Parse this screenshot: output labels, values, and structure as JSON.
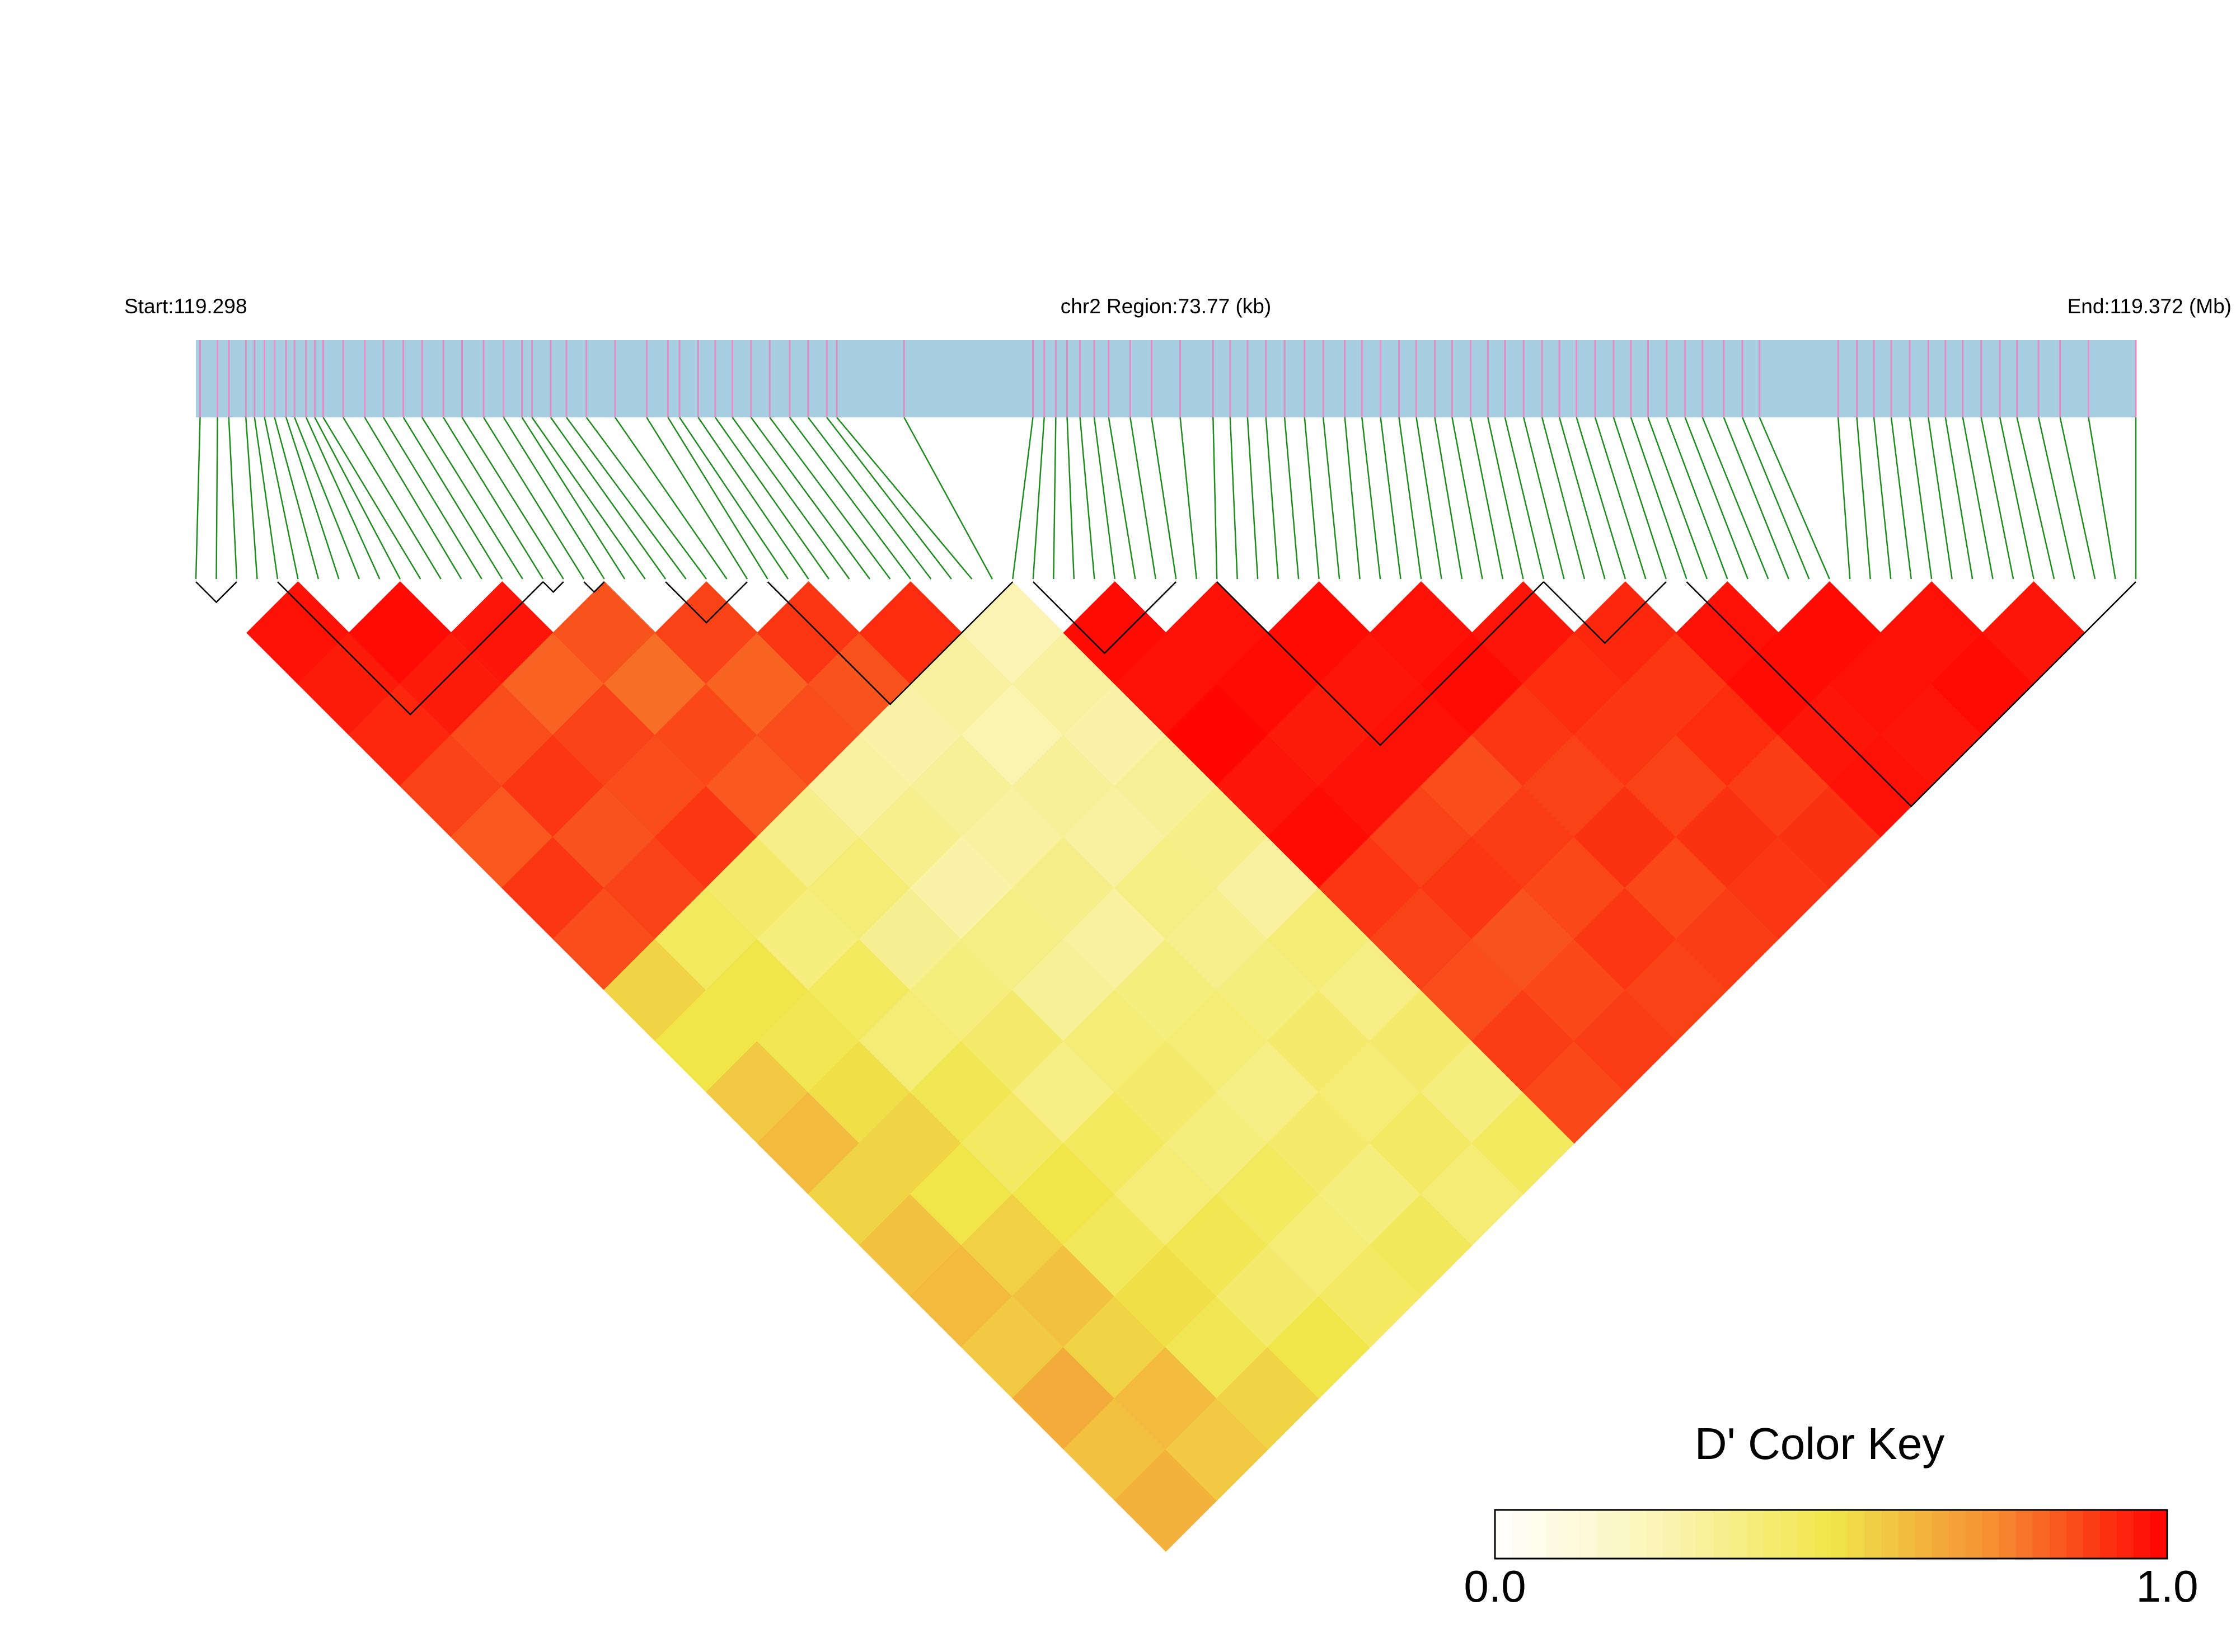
{
  "chart_data": {
    "type": "heatmap",
    "start_label": "Start:119.298",
    "region_label": "chr2 Region:73.77 (kb)",
    "end_label": "End:119.372 (Mb)",
    "xlim": [
      0,
      73.77
    ],
    "bar_color": "#a8cee2",
    "snp_color": "#e48cc4",
    "link_color": "#1e8c1e",
    "block_color": "#000000",
    "snp_positions": [
      0.16,
      0.82,
      1.25,
      1.9,
      2.23,
      2.61,
      2.99,
      3.43,
      3.75,
      4.19,
      4.52,
      4.84,
      5.6,
      6.42,
      7.13,
      7.89,
      8.6,
      9.41,
      10.12,
      10.94,
      11.7,
      12.4,
      12.78,
      13.49,
      14.09,
      14.85,
      15.94,
      17.14,
      17.95,
      18.39,
      19.1,
      19.75,
      20.4,
      21.11,
      21.82,
      22.58,
      23.28,
      23.99,
      24.37,
      26.93,
      31.83,
      32.26,
      32.7,
      33.13,
      33.62,
      34.16,
      34.71,
      35.53,
      36.34,
      37.43,
      38.68,
      39.33,
      39.99,
      40.69,
      41.4,
      42.16,
      42.87,
      43.69,
      44.34,
      45.05,
      45.75,
      46.41,
      47.11,
      47.77,
      48.47,
      49.13,
      49.78,
      50.49,
      51.19,
      51.85,
      52.5,
      53.21,
      53.91,
      54.57,
      55.22,
      55.93,
      56.63,
      57.29,
      58.1,
      58.81,
      59.46,
      62.45,
      63.16,
      63.81,
      64.47,
      65.17,
      65.88,
      66.53,
      67.19,
      67.89,
      68.6,
      69.25,
      70.07,
      70.89,
      71.97,
      73.77
    ],
    "blocks": [
      [
        0,
        2
      ],
      [
        4,
        17
      ],
      [
        17,
        18
      ],
      [
        19,
        20
      ],
      [
        23,
        27
      ],
      [
        28,
        40
      ],
      [
        41,
        48
      ],
      [
        50,
        66
      ],
      [
        66,
        72
      ],
      [
        73,
        95
      ]
    ],
    "ld": [
      [
        0.97,
        0.95,
        0.93,
        0.88,
        0.84,
        0.9,
        0.86,
        0.55,
        0.5,
        0.58,
        0.62,
        0.55,
        0.6,
        0.62,
        0.58,
        0.66,
        0.6,
        0.64
      ],
      [
        0.98,
        0.95,
        0.86,
        0.9,
        0.85,
        0.88,
        0.45,
        0.5,
        0.48,
        0.52,
        0.55,
        0.5,
        0.56,
        0.6,
        0.55,
        0.62,
        0.58
      ],
      [
        0.96,
        0.82,
        0.88,
        0.86,
        0.9,
        0.42,
        0.38,
        0.45,
        0.4,
        0.48,
        0.44,
        0.5,
        0.46,
        0.52,
        0.48,
        0.55
      ],
      [
        0.85,
        0.8,
        0.87,
        0.84,
        0.35,
        0.4,
        0.33,
        0.38,
        0.42,
        0.36,
        0.45,
        0.4,
        0.48,
        0.42,
        0.5
      ],
      [
        0.88,
        0.82,
        0.86,
        0.3,
        0.34,
        0.28,
        0.36,
        0.32,
        0.4,
        0.42,
        0.38,
        0.45,
        0.4,
        0.44
      ],
      [
        0.9,
        0.85,
        0.28,
        0.32,
        0.3,
        0.35,
        0.3,
        0.38,
        0.4,
        0.36,
        0.42,
        0.38,
        0.46
      ],
      [
        0.92,
        0.3,
        0.26,
        0.32,
        0.3,
        0.36,
        0.34,
        0.38,
        0.42,
        0.4,
        0.44,
        0.4
      ],
      [
        0.25,
        0.3,
        0.28,
        0.32,
        0.35,
        0.3,
        0.4,
        0.36,
        0.42,
        0.38,
        0.45
      ],
      [
        0.98,
        0.97,
        0.99,
        0.96,
        0.98,
        0.9,
        0.88,
        0.86,
        0.89,
        0.87
      ],
      [
        0.97,
        0.98,
        0.95,
        0.97,
        0.88,
        0.9,
        0.85,
        0.87,
        0.89
      ],
      [
        0.98,
        0.96,
        0.97,
        0.86,
        0.89,
        0.87,
        0.9,
        0.88
      ],
      [
        0.97,
        0.98,
        0.9,
        0.88,
        0.91,
        0.87,
        0.89
      ],
      [
        0.96,
        0.92,
        0.9,
        0.88,
        0.91,
        0.9
      ],
      [
        0.93,
        0.9,
        0.92,
        0.89,
        0.91
      ],
      [
        0.97,
        0.98,
        0.96,
        0.97
      ],
      [
        0.98,
        0.97,
        0.96
      ],
      [
        0.97,
        0.98
      ],
      [
        0.96
      ]
    ],
    "color_key": {
      "title": "D' Color Key",
      "clim": [
        0,
        1
      ],
      "colors": [
        "#ffffff",
        "#fbf4b4",
        "#f0e64a",
        "#f58a30",
        "#ff0000"
      ],
      "ticks": [
        {
          "value": 0,
          "label": "0.0"
        },
        {
          "value": 1,
          "label": "1.0"
        }
      ]
    }
  }
}
